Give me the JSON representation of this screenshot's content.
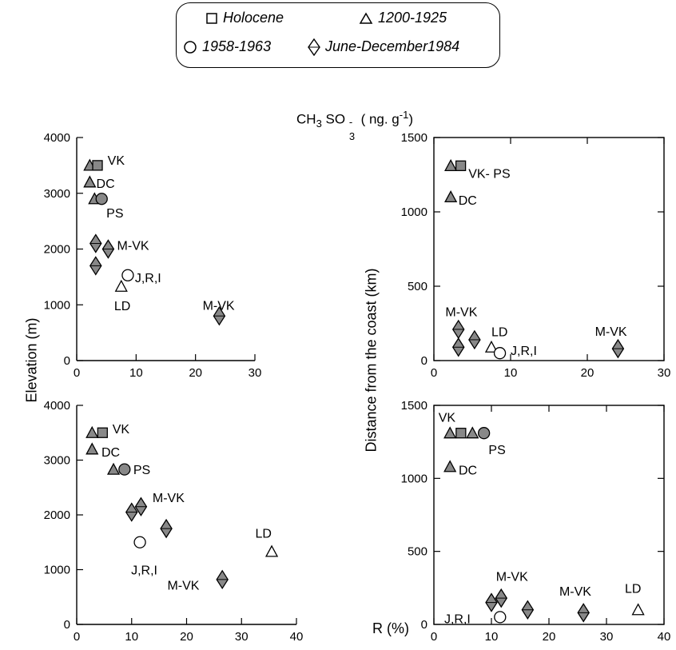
{
  "legend": {
    "items": [
      {
        "label": "Holocene",
        "marker": "square"
      },
      {
        "label": "1200-1925",
        "marker": "triangle"
      },
      {
        "label": "1958-1963",
        "marker": "circle"
      },
      {
        "label": "June-December1984",
        "marker": "diamond"
      }
    ]
  },
  "labels": {
    "top_label_main": "CH",
    "top_label_sub1": "3",
    "top_label_mid": "SO",
    "top_label_sup": "-",
    "top_label_sub2": "3",
    "top_label_unit": "( ng. g",
    "top_label_unit_sup": "-1",
    "top_label_close": ")",
    "elevation_axis": "Elevation (m)",
    "distance_axis": "Distance from the coast (km)",
    "r_axis": "R (%)"
  },
  "chart_data": [
    {
      "type": "scatter",
      "id": "top-left",
      "xlim": [
        0,
        30
      ],
      "ylim": [
        0,
        4000
      ],
      "xticks": [
        0,
        10,
        20,
        30
      ],
      "yticks": [
        0,
        1000,
        2000,
        3000,
        4000
      ],
      "points": [
        {
          "x": 2.2,
          "y": 3500,
          "marker": "triangle"
        },
        {
          "x": 3.5,
          "y": 3500,
          "marker": "square"
        },
        {
          "x": 2.2,
          "y": 3200,
          "marker": "triangle"
        },
        {
          "x": 3.0,
          "y": 2900,
          "marker": "triangle"
        },
        {
          "x": 4.2,
          "y": 2900,
          "marker": "circle"
        },
        {
          "x": 3.2,
          "y": 2100,
          "marker": "diamond"
        },
        {
          "x": 5.3,
          "y": 2000,
          "marker": "diamond"
        },
        {
          "x": 3.2,
          "y": 1700,
          "marker": "diamond"
        },
        {
          "x": 8.6,
          "y": 1530,
          "marker": "circle-open"
        },
        {
          "x": 7.5,
          "y": 1330,
          "marker": "triangle-open"
        },
        {
          "x": 24.0,
          "y": 800,
          "marker": "diamond"
        }
      ],
      "annotations": [
        {
          "text": "VK",
          "x": 5.2,
          "y": 3600
        },
        {
          "text": "DC",
          "x": 3.3,
          "y": 3180
        },
        {
          "text": "PS",
          "x": 5.0,
          "y": 2650
        },
        {
          "text": "M-VK",
          "x": 6.8,
          "y": 2070
        },
        {
          "text": "J,R,I",
          "x": 9.8,
          "y": 1490
        },
        {
          "text": "LD",
          "x": 6.3,
          "y": 990
        },
        {
          "text": "M-VK",
          "x": 21.2,
          "y": 1000
        }
      ]
    },
    {
      "type": "scatter",
      "id": "top-right",
      "xlim": [
        0,
        30
      ],
      "ylim": [
        0,
        1500
      ],
      "xticks": [
        0,
        10,
        20,
        30
      ],
      "yticks": [
        0,
        500,
        1000,
        1500
      ],
      "points": [
        {
          "x": 2.2,
          "y": 1310,
          "marker": "triangle"
        },
        {
          "x": 3.5,
          "y": 1310,
          "marker": "square"
        },
        {
          "x": 2.2,
          "y": 1100,
          "marker": "triangle"
        },
        {
          "x": 3.2,
          "y": 210,
          "marker": "diamond"
        },
        {
          "x": 5.3,
          "y": 140,
          "marker": "diamond"
        },
        {
          "x": 3.2,
          "y": 90,
          "marker": "diamond"
        },
        {
          "x": 7.5,
          "y": 90,
          "marker": "triangle-open"
        },
        {
          "x": 8.6,
          "y": 50,
          "marker": "circle-open"
        },
        {
          "x": 24.0,
          "y": 80,
          "marker": "diamond"
        }
      ],
      "annotations": [
        {
          "text": "VK- PS",
          "x": 4.5,
          "y": 1260
        },
        {
          "text": "DC",
          "x": 3.2,
          "y": 1080
        },
        {
          "text": "M-VK",
          "x": 1.5,
          "y": 330
        },
        {
          "text": "LD",
          "x": 7.5,
          "y": 195
        },
        {
          "text": "J,R,I",
          "x": 10.0,
          "y": 70
        },
        {
          "text": "M-VK",
          "x": 21.0,
          "y": 200
        }
      ]
    },
    {
      "type": "scatter",
      "id": "bottom-left",
      "xlim": [
        0,
        40
      ],
      "ylim": [
        0,
        4000
      ],
      "xticks": [
        0,
        10,
        20,
        30,
        40
      ],
      "yticks": [
        0,
        1000,
        2000,
        3000,
        4000
      ],
      "points": [
        {
          "x": 2.8,
          "y": 3500,
          "marker": "triangle"
        },
        {
          "x": 4.7,
          "y": 3500,
          "marker": "square"
        },
        {
          "x": 2.8,
          "y": 3200,
          "marker": "triangle"
        },
        {
          "x": 6.7,
          "y": 2830,
          "marker": "triangle"
        },
        {
          "x": 8.7,
          "y": 2830,
          "marker": "circle"
        },
        {
          "x": 10.0,
          "y": 2050,
          "marker": "diamond"
        },
        {
          "x": 11.7,
          "y": 2150,
          "marker": "diamond"
        },
        {
          "x": 16.3,
          "y": 1750,
          "marker": "diamond"
        },
        {
          "x": 11.5,
          "y": 1500,
          "marker": "circle-open"
        },
        {
          "x": 35.5,
          "y": 1330,
          "marker": "triangle-open"
        },
        {
          "x": 26.5,
          "y": 820,
          "marker": "diamond"
        }
      ],
      "annotations": [
        {
          "text": "VK",
          "x": 6.5,
          "y": 3580
        },
        {
          "text": "DC",
          "x": 4.5,
          "y": 3150
        },
        {
          "text": "PS",
          "x": 10.3,
          "y": 2830
        },
        {
          "text": "M-VK",
          "x": 13.8,
          "y": 2320
        },
        {
          "text": "J,R,I",
          "x": 9.9,
          "y": 1000
        },
        {
          "text": "LD",
          "x": 32.5,
          "y": 1670
        },
        {
          "text": "M-VK",
          "x": 16.5,
          "y": 720
        }
      ]
    },
    {
      "type": "scatter",
      "id": "bottom-right",
      "xlim": [
        0,
        40
      ],
      "ylim": [
        0,
        1500
      ],
      "xticks": [
        0,
        10,
        20,
        30,
        40
      ],
      "yticks": [
        0,
        500,
        1000,
        1500
      ],
      "points": [
        {
          "x": 2.8,
          "y": 1310,
          "marker": "triangle"
        },
        {
          "x": 4.7,
          "y": 1310,
          "marker": "square"
        },
        {
          "x": 6.7,
          "y": 1310,
          "marker": "triangle"
        },
        {
          "x": 8.7,
          "y": 1310,
          "marker": "circle"
        },
        {
          "x": 2.8,
          "y": 1080,
          "marker": "triangle"
        },
        {
          "x": 10.0,
          "y": 150,
          "marker": "diamond"
        },
        {
          "x": 11.7,
          "y": 180,
          "marker": "diamond"
        },
        {
          "x": 11.5,
          "y": 50,
          "marker": "circle-open"
        },
        {
          "x": 16.3,
          "y": 100,
          "marker": "diamond"
        },
        {
          "x": 26.0,
          "y": 80,
          "marker": "diamond"
        },
        {
          "x": 35.5,
          "y": 100,
          "marker": "triangle-open"
        }
      ],
      "annotations": [
        {
          "text": "VK",
          "x": 0.8,
          "y": 1420
        },
        {
          "text": "PS",
          "x": 9.5,
          "y": 1200
        },
        {
          "text": "DC",
          "x": 4.3,
          "y": 1060
        },
        {
          "text": "M-VK",
          "x": 10.8,
          "y": 330
        },
        {
          "text": "J,R,I",
          "x": 1.8,
          "y": 40
        },
        {
          "text": "M-VK",
          "x": 21.8,
          "y": 230
        },
        {
          "text": "LD",
          "x": 33.2,
          "y": 250
        }
      ]
    }
  ]
}
